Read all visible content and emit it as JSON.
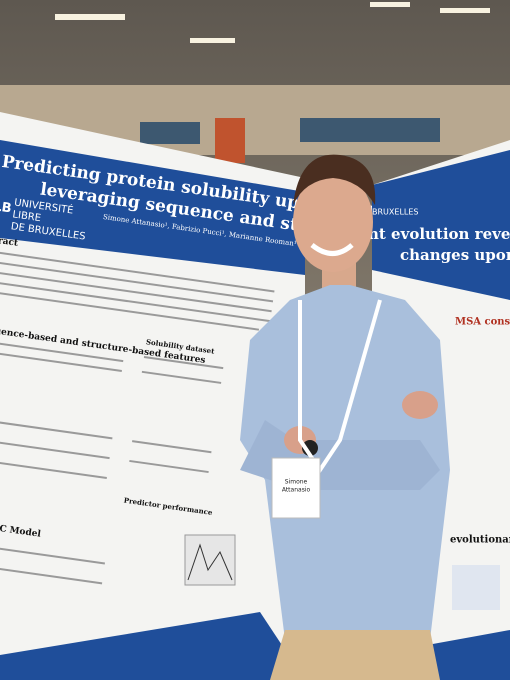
{
  "left_poster": {
    "title_line1": "Predicting protein solubility upon single mutation",
    "title_line2": "leveraging sequence and structure information",
    "logo": "LB",
    "university": [
      "UNIVERSITÉ",
      "LIBRE",
      "DE BRUXELLES"
    ],
    "authors": "Simone Attanasio¹, Fabrizio Pucci¹, Marianne Rooman¹",
    "sections": [
      "stract",
      "Sequence-based and structure-based features",
      "Solubility dataset",
      "SOluMuSiC Model",
      "Predictor performance"
    ]
  },
  "right_poster": {
    "institution": "BRUXELLES",
    "title_line1": "nt evolution reveals about p",
    "title_line2": "changes upon mutati",
    "sections": [
      "MSA construction",
      "evolutionary mode"
    ]
  },
  "badge": {
    "name": "Simone",
    "surname": "Attanasio"
  }
}
